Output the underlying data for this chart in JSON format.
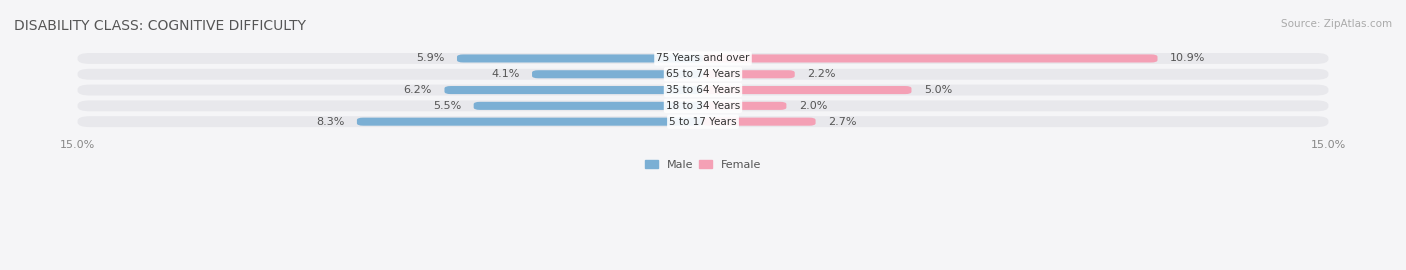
{
  "title": "DISABILITY CLASS: COGNITIVE DIFFICULTY",
  "source": "Source: ZipAtlas.com",
  "categories": [
    "5 to 17 Years",
    "18 to 34 Years",
    "35 to 64 Years",
    "65 to 74 Years",
    "75 Years and over"
  ],
  "male_values": [
    8.3,
    5.5,
    6.2,
    4.1,
    5.9
  ],
  "female_values": [
    2.7,
    2.0,
    5.0,
    2.2,
    10.9
  ],
  "max_val": 15.0,
  "male_color": "#7bafd4",
  "female_color": "#f4a0b5",
  "bar_bg_color": "#e8e8ec",
  "label_color": "#333333",
  "title_color": "#555555",
  "axis_label_color": "#888888",
  "bar_height": 0.55,
  "bar_gap": 0.15,
  "legend_male": "Male",
  "legend_female": "Female"
}
